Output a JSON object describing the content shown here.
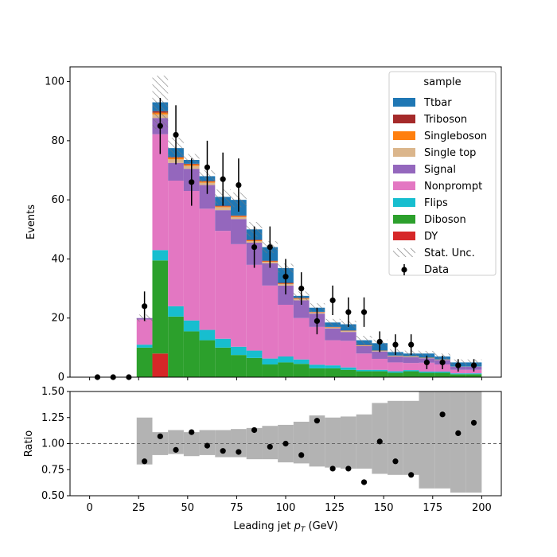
{
  "chart_data": [
    {
      "type": "bar",
      "stacked": true,
      "step": "histogram",
      "xlabel": "Leading jet  p_T (GeV)",
      "ylabel": "Events",
      "xlim": [
        -10,
        210
      ],
      "ylim": [
        0,
        105
      ],
      "yticks": [
        0,
        20,
        40,
        60,
        80,
        100
      ],
      "bin_edges": [
        0,
        8,
        16,
        24,
        32,
        40,
        48,
        56,
        64,
        72,
        80,
        88,
        96,
        104,
        112,
        120,
        128,
        136,
        144,
        152,
        160,
        168,
        176,
        184,
        192,
        200
      ],
      "series": [
        {
          "name": "DY",
          "color": "#d62728",
          "values": [
            0,
            0,
            0,
            0,
            8,
            0,
            0,
            0,
            0,
            0,
            0,
            0,
            0,
            0,
            0,
            0,
            0,
            0,
            0,
            0,
            0,
            0,
            0,
            0,
            0
          ]
        },
        {
          "name": "Diboson",
          "color": "#2ca02c",
          "values": [
            0,
            0,
            0,
            10,
            31.5,
            20.5,
            15.5,
            12.5,
            10,
            7.5,
            6.5,
            4.3,
            5,
            4.5,
            3,
            3,
            2.5,
            2,
            2,
            1.5,
            2,
            1.5,
            1.5,
            1,
            1
          ]
        },
        {
          "name": "Flips",
          "color": "#17becf",
          "values": [
            0,
            0,
            0,
            1,
            3.5,
            3.5,
            3.7,
            3.5,
            3,
            2.8,
            2.5,
            2,
            2,
            1.5,
            1.2,
            1,
            0.8,
            0.5,
            0.5,
            0.5,
            0.4,
            0.4,
            0.4,
            0.3,
            0.3
          ]
        },
        {
          "name": "Nonprompt",
          "color": "#e377c2",
          "values": [
            0,
            0,
            0,
            8.5,
            39.2,
            42.5,
            43.8,
            41,
            36.5,
            34.7,
            29,
            24.7,
            17.5,
            14,
            12.8,
            8.5,
            9,
            5.5,
            3.7,
            3,
            2.4,
            3,
            2.4,
            1.2,
            1.2
          ]
        },
        {
          "name": "Signal",
          "color": "#9467bd",
          "values": [
            0,
            0,
            0,
            0.5,
            5.5,
            6,
            7.5,
            8,
            7,
            8.5,
            7.5,
            7.5,
            6.5,
            6,
            4.5,
            4,
            3,
            2.5,
            2.5,
            2,
            2,
            1.5,
            1.5,
            1,
            1
          ]
        },
        {
          "name": "Single top",
          "color": "#dbb68c",
          "values": [
            0,
            0,
            0,
            0,
            1.2,
            1.2,
            1,
            0.8,
            1,
            0.7,
            0.5,
            0.5,
            0.5,
            0.5,
            0.4,
            0.3,
            0.3,
            0.2,
            0.2,
            0.2,
            0.2,
            0.1,
            0.1,
            0.1,
            0.1
          ]
        },
        {
          "name": "Singleboson",
          "color": "#ff7f0e",
          "values": [
            0,
            0,
            0,
            0,
            0.6,
            0.6,
            0.5,
            0.4,
            0.3,
            0.3,
            0.3,
            0.2,
            0.2,
            0.2,
            0.1,
            0.1,
            0.1,
            0.1,
            0.1,
            0.1,
            0.1,
            0.1,
            0.1,
            0,
            0
          ]
        },
        {
          "name": "Triboson",
          "color": "#a52a2a",
          "values": [
            0,
            0,
            0,
            0,
            0.5,
            0.2,
            0.2,
            0.2,
            0.2,
            0.2,
            0.2,
            0.2,
            0.2,
            0.1,
            0.1,
            0.1,
            0.1,
            0.1,
            0,
            0,
            0,
            0,
            0,
            0,
            0
          ]
        },
        {
          "name": "Ttbar",
          "color": "#1f77b4",
          "values": [
            0,
            0,
            0,
            0,
            3,
            3,
            1.3,
            1.6,
            3,
            5.3,
            3.5,
            4.6,
            5,
            0.7,
            1.4,
            1.5,
            2.1,
            1.6,
            2.5,
            1.2,
            0.9,
            1.4,
            1,
            1.4,
            1.4
          ]
        }
      ],
      "stat_unc": [
        0,
        0,
        0,
        1.2,
        9,
        3.5,
        2,
        2,
        2.5,
        2.5,
        2.5,
        2,
        1.5,
        1.5,
        1.5,
        1.2,
        1.2,
        1.5,
        1.2,
        1,
        1,
        0.9,
        1,
        1,
        1
      ],
      "data": {
        "name": "Data",
        "x": [
          4,
          12,
          20,
          28,
          36,
          44,
          52,
          60,
          68,
          76,
          84,
          92,
          100,
          108,
          116,
          124,
          132,
          140,
          148,
          156,
          164,
          172,
          180,
          188,
          196
        ],
        "y": [
          0,
          0,
          0,
          24,
          85,
          82,
          66,
          71,
          67,
          65,
          44,
          44,
          34,
          30,
          19,
          26,
          22,
          22,
          12,
          11,
          11,
          5,
          5,
          4,
          4
        ],
        "err": [
          0,
          0,
          0,
          5,
          9.5,
          10,
          8,
          9,
          9,
          9,
          7,
          7,
          6,
          5.5,
          4.5,
          5,
          5,
          5,
          3.5,
          3.5,
          3.5,
          2.3,
          2.3,
          2.1,
          2.1
        ]
      },
      "legend": {
        "title": "sample",
        "position": "top-right",
        "entries": [
          "Ttbar",
          "Triboson",
          "Singleboson",
          "Single top",
          "Signal",
          "Nonprompt",
          "Flips",
          "Diboson",
          "DY",
          "Stat. Unc.",
          "Data"
        ]
      }
    },
    {
      "type": "scatter",
      "xlabel": "Leading jet  p_T (GeV)",
      "ylabel": "Ratio",
      "xlim": [
        -10,
        210
      ],
      "ylim": [
        0.5,
        1.5
      ],
      "yticks": [
        0.5,
        0.75,
        1.0,
        1.25,
        1.5
      ],
      "yticklabels": [
        "0.50",
        "0.75",
        "1.00",
        "1.25",
        "1.50"
      ],
      "xticks": [
        0,
        25,
        50,
        75,
        100,
        125,
        150,
        175,
        200
      ],
      "reference_line": 1.0,
      "x": [
        28,
        36,
        44,
        52,
        60,
        68,
        76,
        84,
        92,
        100,
        108,
        116,
        124,
        132,
        140,
        148,
        156,
        164,
        172,
        180,
        188,
        196
      ],
      "y": [
        0.83,
        1.07,
        0.94,
        1.11,
        0.98,
        0.93,
        0.92,
        1.13,
        0.97,
        1.0,
        0.89,
        1.22,
        0.76,
        0.76,
        0.63,
        1.02,
        0.83,
        0.7,
        null,
        1.28,
        1.1,
        1.2
      ],
      "band_edges": [
        24,
        32,
        40,
        48,
        56,
        64,
        72,
        80,
        88,
        96,
        104,
        112,
        120,
        128,
        136,
        144,
        152,
        160,
        168,
        176,
        184,
        192,
        200
      ],
      "band_low": [
        0.8,
        0.89,
        0.9,
        0.88,
        0.89,
        0.87,
        0.87,
        0.85,
        0.85,
        0.82,
        0.81,
        0.78,
        0.77,
        0.76,
        0.76,
        0.71,
        0.7,
        0.7,
        0.57,
        0.57,
        0.53,
        0.53
      ],
      "band_high": [
        1.25,
        1.11,
        1.13,
        1.11,
        1.13,
        1.13,
        1.14,
        1.15,
        1.17,
        1.18,
        1.21,
        1.27,
        1.25,
        1.26,
        1.28,
        1.39,
        1.41,
        1.41,
        1.5,
        1.5,
        1.5,
        1.5
      ]
    }
  ]
}
